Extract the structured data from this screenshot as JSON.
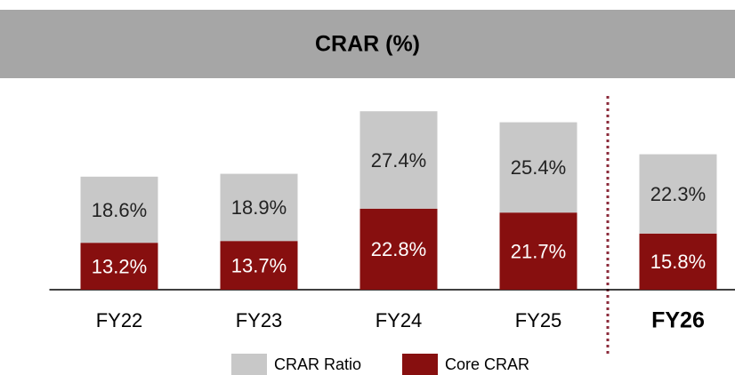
{
  "chart_data": {
    "type": "stacked_bar",
    "title": "CRAR (%)",
    "categories": [
      "FY22",
      "FY23",
      "FY24",
      "FY25",
      "FY26"
    ],
    "series": [
      {
        "name": "Core CRAR",
        "color": "#870f0f",
        "values": [
          13.2,
          13.7,
          22.8,
          21.7,
          15.8
        ],
        "value_labels": [
          "13.2%",
          "13.7%",
          "22.8%",
          "21.7%",
          "15.8%"
        ]
      },
      {
        "name": "CRAR Ratio",
        "color": "#c8c8c8",
        "values": [
          18.6,
          18.9,
          27.4,
          25.4,
          22.3
        ],
        "value_labels": [
          "18.6%",
          "18.9%",
          "27.4%",
          "25.4%",
          "22.3%"
        ]
      }
    ],
    "ylim": [
      0,
      80
    ]
  }
}
